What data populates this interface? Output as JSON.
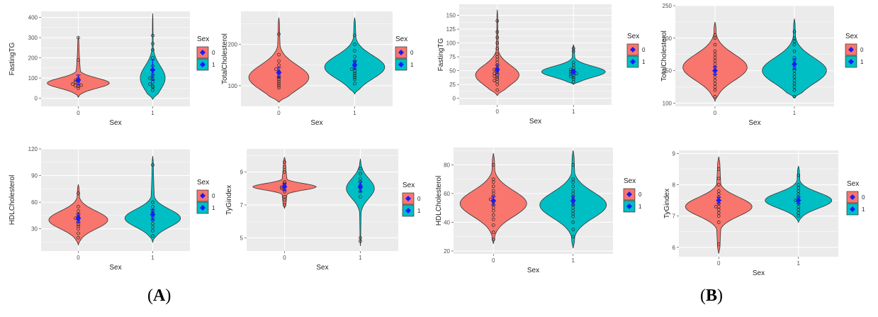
{
  "figure_labels": {
    "A": "A",
    "B": "B"
  },
  "legend": {
    "title": "Sex",
    "levels": [
      "0",
      "1"
    ]
  },
  "colors": {
    "sex0": "#F8766D",
    "sex1": "#00BFC4",
    "panel_bg": "#EBEBEB",
    "grid": "#FFFFFF",
    "mean": "#1A1AFF",
    "tick_text": "#4D4D4D"
  },
  "chart_data": [
    {
      "id": "A1",
      "type": "violin",
      "group": "A",
      "xlabel": "Sex",
      "ylabel": "FastingTG",
      "categories": [
        "0",
        "1"
      ],
      "ylim": [
        -40,
        430
      ],
      "yticks": [
        0,
        100,
        200,
        300,
        400
      ],
      "violins": [
        {
          "min": 5,
          "max": 305,
          "mode": 75,
          "spread": 25,
          "width": 0.95
        },
        {
          "min": -5,
          "max": 420,
          "mode": 100,
          "spread": 60,
          "width": 0.38
        }
      ],
      "points": [
        [
          50,
          60,
          62,
          65,
          70,
          75,
          80,
          85,
          90,
          100,
          190,
          300
        ],
        [
          40,
          55,
          60,
          70,
          80,
          95,
          100,
          110,
          120,
          140,
          160,
          200,
          240,
          270,
          310
        ]
      ],
      "means": [
        90,
        140
      ],
      "mean_err": [
        25,
        50
      ]
    },
    {
      "id": "A2",
      "type": "violin",
      "group": "A",
      "xlabel": "Sex",
      "ylabel": "TotalCholesterol",
      "categories": [
        "0",
        "1"
      ],
      "ylim": [
        50,
        280
      ],
      "yticks": [
        100,
        200
      ],
      "violins": [
        {
          "min": 60,
          "max": 265,
          "mode": 120,
          "spread": 30,
          "width": 0.9
        },
        {
          "min": 80,
          "max": 265,
          "mode": 145,
          "spread": 28,
          "width": 0.9
        }
      ],
      "points": [
        [
          95,
          100,
          105,
          110,
          115,
          120,
          125,
          130,
          135,
          140,
          150,
          160,
          175,
          225
        ],
        [
          105,
          115,
          120,
          125,
          130,
          135,
          140,
          145,
          150,
          155,
          160,
          170,
          185,
          200,
          222
        ]
      ],
      "means": [
        132,
        150
      ],
      "mean_err": [
        12,
        10
      ]
    },
    {
      "id": "A3",
      "type": "violin",
      "group": "A",
      "xlabel": "Sex",
      "ylabel": "HDLCholesterol",
      "categories": [
        "0",
        "1"
      ],
      "ylim": [
        5,
        120
      ],
      "yticks": [
        30,
        60,
        90,
        120
      ],
      "violins": [
        {
          "min": 12,
          "max": 80,
          "mode": 40,
          "spread": 10,
          "width": 0.9
        },
        {
          "min": 15,
          "max": 112,
          "mode": 42,
          "spread": 10,
          "width": 0.85
        }
      ],
      "points": [
        [
          20,
          25,
          30,
          33,
          35,
          38,
          40,
          42,
          44,
          46,
          50,
          55,
          70
        ],
        [
          22,
          28,
          32,
          36,
          40,
          43,
          46,
          48,
          50,
          55,
          60,
          102
        ]
      ],
      "means": [
        42,
        46
      ],
      "mean_err": [
        5,
        6
      ]
    },
    {
      "id": "A4",
      "type": "violin",
      "group": "A",
      "xlabel": "Sex",
      "ylabel": "TyGindex",
      "categories": [
        "0",
        "1"
      ],
      "ylim": [
        4.2,
        10.4
      ],
      "yticks": [
        5,
        7,
        9
      ],
      "violins": [
        {
          "min": 6.8,
          "max": 9.9,
          "mode": 8.1,
          "spread": 0.2,
          "width": 0.95
        },
        {
          "min": 4.5,
          "max": 9.8,
          "mode": 8.0,
          "spread": 0.6,
          "width": 0.42
        }
      ],
      "points": [
        [
          7.0,
          7.3,
          7.5,
          7.8,
          7.9,
          8.0,
          8.1,
          8.1,
          8.2,
          8.3,
          8.4,
          9.0,
          9.3,
          9.6
        ],
        [
          4.8,
          5.0,
          7.5,
          7.8,
          8.0,
          8.2,
          8.4,
          8.6,
          8.9,
          9.2
        ]
      ],
      "means": [
        8.1,
        8.1
      ],
      "mean_err": [
        0.2,
        0.3
      ]
    },
    {
      "id": "B1",
      "type": "violin",
      "group": "B",
      "xlabel": "Sex",
      "ylabel": "FastingTG",
      "categories": [
        "0",
        "1"
      ],
      "ylim": [
        -12,
        170
      ],
      "yticks": [
        0,
        25,
        50,
        75,
        100,
        125,
        150
      ],
      "violins": [
        {
          "min": 5,
          "max": 160,
          "mode": 42,
          "spread": 18,
          "width": 0.65
        },
        {
          "min": 25,
          "max": 97,
          "mode": 48,
          "spread": 10,
          "width": 0.95
        }
      ],
      "points": [
        [
          15,
          25,
          30,
          32,
          35,
          38,
          40,
          42,
          45,
          48,
          50,
          52,
          55,
          60,
          65,
          70,
          75,
          80,
          90,
          100,
          110,
          120,
          140
        ],
        [
          30,
          35,
          38,
          40,
          42,
          44,
          45,
          46,
          48,
          50,
          52,
          55,
          60,
          65,
          85,
          90
        ]
      ],
      "means": [
        52,
        48
      ],
      "mean_err": [
        8,
        4
      ]
    },
    {
      "id": "B2",
      "type": "violin",
      "group": "B",
      "xlabel": "Sex",
      "ylabel": "TotalCholesterol",
      "categories": [
        "0",
        "1"
      ],
      "ylim": [
        95,
        250
      ],
      "yticks": [
        100,
        150,
        200,
        250
      ],
      "violins": [
        {
          "min": 103,
          "max": 225,
          "mode": 155,
          "spread": 20,
          "width": 0.92
        },
        {
          "min": 108,
          "max": 230,
          "mode": 150,
          "spread": 20,
          "width": 0.92
        }
      ],
      "points": [
        [
          110,
          120,
          125,
          130,
          135,
          140,
          145,
          150,
          155,
          160,
          165,
          170,
          175,
          180,
          190,
          200,
          205
        ],
        [
          110,
          120,
          125,
          130,
          135,
          140,
          145,
          150,
          155,
          160,
          165,
          170,
          180,
          190,
          195,
          200,
          210
        ]
      ],
      "means": [
        150,
        160
      ],
      "mean_err": [
        6,
        8
      ]
    },
    {
      "id": "B3",
      "type": "violin",
      "group": "B",
      "xlabel": "Sex",
      "ylabel": "HDLCholesterol",
      "categories": [
        "0",
        "1"
      ],
      "ylim": [
        18,
        92
      ],
      "yticks": [
        20,
        40,
        60,
        80
      ],
      "violins": [
        {
          "min": 25,
          "max": 88,
          "mode": 53,
          "spread": 9,
          "width": 0.95
        },
        {
          "min": 22,
          "max": 90,
          "mode": 52,
          "spread": 9,
          "width": 0.95
        }
      ],
      "points": [
        [
          28,
          33,
          38,
          42,
          45,
          48,
          50,
          52,
          54,
          55,
          56,
          58,
          60,
          62,
          65,
          68,
          70,
          80
        ],
        [
          30,
          35,
          40,
          44,
          46,
          48,
          50,
          52,
          54,
          56,
          58,
          60,
          62,
          65,
          68,
          70,
          80
        ]
      ],
      "means": [
        55,
        55
      ],
      "mean_err": [
        3,
        3
      ]
    },
    {
      "id": "B4",
      "type": "violin",
      "group": "B",
      "xlabel": "Sex",
      "ylabel": "TyGindex",
      "categories": [
        "0",
        "1"
      ],
      "ylim": [
        5.7,
        9.1
      ],
      "yticks": [
        6,
        7,
        8,
        9
      ],
      "violins": [
        {
          "min": 5.8,
          "max": 8.9,
          "mode": 7.3,
          "spread": 0.3,
          "width": 0.95
        },
        {
          "min": 6.8,
          "max": 8.6,
          "mode": 7.5,
          "spread": 0.25,
          "width": 0.95
        }
      ],
      "points": [
        [
          6.1,
          6.8,
          7.0,
          7.1,
          7.2,
          7.3,
          7.3,
          7.4,
          7.5,
          7.6,
          7.7,
          7.8,
          8.0,
          8.2,
          8.5
        ],
        [
          7.0,
          7.1,
          7.2,
          7.3,
          7.4,
          7.5,
          7.5,
          7.6,
          7.7,
          7.8,
          7.9,
          8.0,
          8.3
        ]
      ],
      "means": [
        7.5,
        7.5
      ],
      "mean_err": [
        0.1,
        0.1
      ]
    }
  ]
}
